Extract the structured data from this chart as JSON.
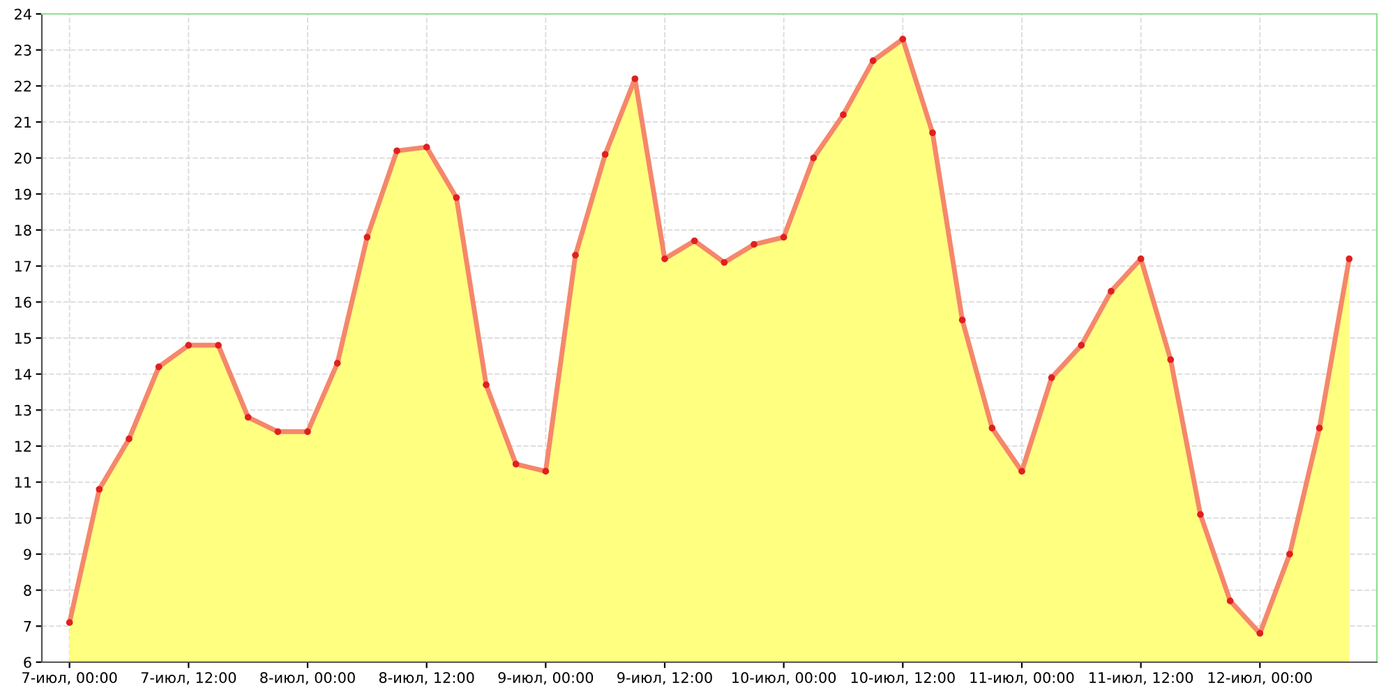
{
  "chart_data": {
    "type": "area",
    "categories": [
      "7-июл, 00:00",
      null,
      null,
      null,
      "7-июл, 12:00",
      null,
      null,
      null,
      "8-июл, 00:00",
      null,
      null,
      null,
      "8-июл, 12:00",
      null,
      null,
      null,
      "9-июл, 00:00",
      null,
      null,
      null,
      "9-июл, 12:00",
      null,
      null,
      null,
      "10-июл, 00:00",
      null,
      null,
      null,
      "10-июл, 12:00",
      null,
      null,
      null,
      "11-июл, 00:00",
      null,
      null,
      null,
      "11-июл, 12:00",
      null,
      null,
      null,
      "12-июл, 00:00",
      null,
      null,
      null
    ],
    "series": [
      {
        "color": "#ffff80",
        "values": [
          7.1,
          10.8,
          12.2,
          14.2,
          14.8,
          14.8,
          12.8,
          12.4,
          12.4,
          14.3,
          17.8,
          20.2,
          20.3,
          18.9,
          13.7,
          11.5,
          11.3,
          17.3,
          20.1,
          22.2,
          17.2,
          17.7,
          17.1,
          17.6,
          17.8,
          20.0,
          21.2,
          22.7,
          23.3,
          20.7,
          15.5,
          12.5,
          11.3,
          13.9,
          14.8,
          16.3,
          17.2,
          14.4,
          10.1,
          7.7,
          6.8,
          9.0,
          12.5,
          17.2
        ]
      }
    ],
    "ylim": [
      6,
      24
    ],
    "yticks": [
      6,
      7,
      8,
      9,
      10,
      11,
      12,
      13,
      14,
      15,
      16,
      17,
      18,
      19,
      20,
      21,
      22,
      23,
      24
    ],
    "grid": true,
    "marker": "circle",
    "line_style": "solid"
  }
}
